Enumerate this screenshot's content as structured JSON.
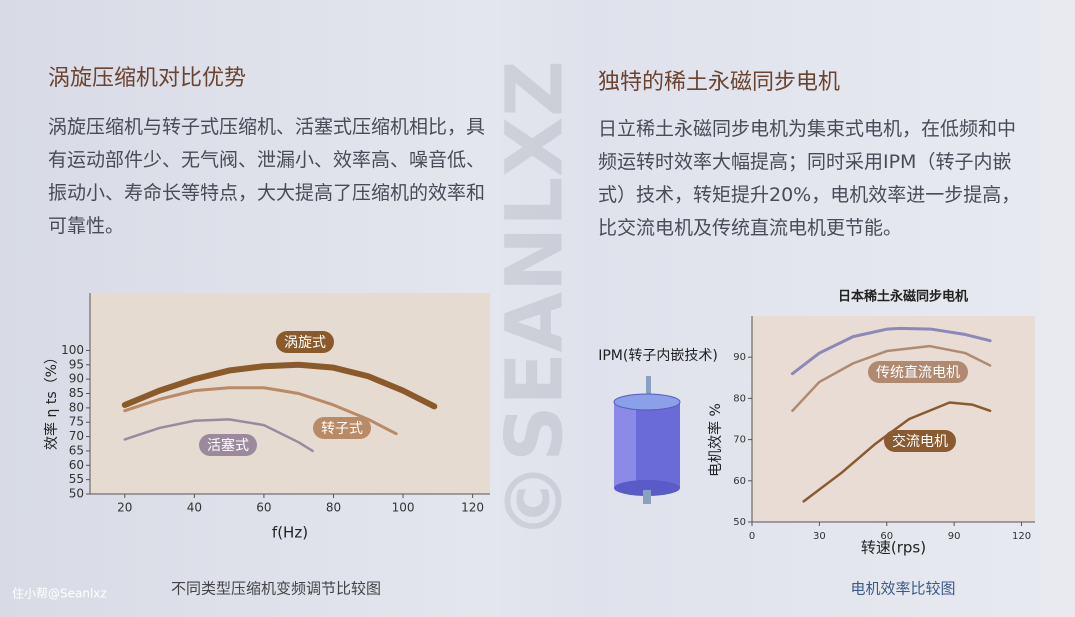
{
  "left": {
    "heading": "涡旋压缩机对比优势",
    "paragraph": "涡旋压缩机与转子式压缩机、活塞式压缩机相比，具有运动部件少、无气阀、泄漏小、效率高、噪音低、振动小、寿命长等特点，大大提高了压缩机的效率和可靠性。"
  },
  "right": {
    "heading": "独特的稀土永磁同步电机",
    "paragraph": "日立稀土永磁同步电机为集束式电机，在低频和中频运转时效率大幅提高；同时采用IPM（转子内嵌式）技术，转矩提升20%，电机效率进一步提高，比交流电机及传统直流电机更节能。"
  },
  "stamp": "©SEANLXZ",
  "watermark": "住小帮@Seanlxz",
  "chart_data": [
    {
      "type": "line",
      "y_label": "效率 η ts（%）",
      "x_label": "f(Hz)",
      "caption": "不同类型压缩机变频调节比较图",
      "xlim": [
        10,
        125
      ],
      "ylim": [
        50,
        120
      ],
      "xticks": [
        20,
        40,
        60,
        80,
        100,
        120
      ],
      "yticks": [
        50,
        55,
        60,
        65,
        70,
        75,
        80,
        85,
        90,
        95,
        100
      ],
      "series": [
        {
          "name": "涡旋式",
          "color": "#8a5a2a",
          "x": [
            20,
            30,
            40,
            50,
            60,
            70,
            80,
            90,
            100,
            109
          ],
          "values": [
            81,
            86,
            90,
            93,
            94.5,
            95,
            94,
            91,
            86,
            80.5
          ]
        },
        {
          "name": "转子式",
          "color": "#b98a66",
          "x": [
            20,
            30,
            40,
            50,
            60,
            70,
            80,
            90,
            98
          ],
          "values": [
            79,
            83,
            86,
            87,
            87,
            85,
            81,
            76,
            71
          ]
        },
        {
          "name": "活塞式",
          "color": "#9c8a9c",
          "x": [
            20,
            30,
            40,
            50,
            60,
            70,
            74
          ],
          "values": [
            69,
            73,
            75.5,
            76,
            74,
            68,
            65
          ]
        }
      ]
    },
    {
      "type": "line",
      "title": "日本稀土永磁同步电机",
      "annotation": "IPM(转子内嵌技术)",
      "y_label": "电机效率 %",
      "x_label": "转速(rps)",
      "caption": "电机效率比较图",
      "xlim": [
        0,
        126
      ],
      "ylim": [
        50,
        100
      ],
      "xticks": [
        0,
        30,
        60,
        90,
        120
      ],
      "yticks": [
        50,
        60,
        70,
        80,
        90
      ],
      "series": [
        {
          "color": "#8c88b8",
          "x": [
            18,
            30,
            45,
            60,
            66,
            80,
            95,
            106
          ],
          "values": [
            86,
            91,
            95,
            96.8,
            97,
            96.8,
            95.5,
            94
          ]
        },
        {
          "name": "传统直流电机",
          "color": "#b08a70",
          "x": [
            18,
            30,
            45,
            60,
            79,
            95,
            106
          ],
          "values": [
            77,
            84,
            88.5,
            91.5,
            92.7,
            91,
            88
          ]
        },
        {
          "name": "交流电机",
          "color": "#8a5a30",
          "x": [
            23,
            40,
            55,
            70,
            88,
            98,
            106
          ],
          "values": [
            55,
            62,
            69,
            75,
            79,
            78.5,
            77
          ]
        }
      ]
    }
  ]
}
